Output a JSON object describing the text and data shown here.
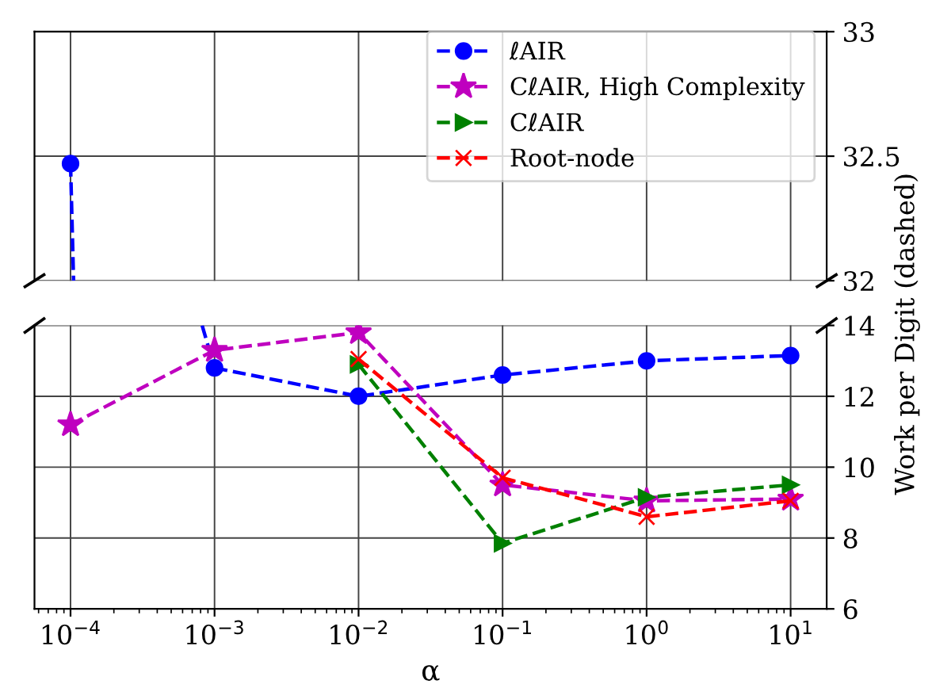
{
  "chart_data": [
    {
      "type": "line",
      "grid": true,
      "line_style": "dashed",
      "tick_labels": "y",
      "log": "x",
      "x": [
        0.0001
      ],
      "xlim": [
        5.62e-05,
        17.8
      ],
      "xticks": [
        0.0001,
        0.001,
        0.01,
        0.1,
        1,
        10
      ],
      "ylim": [
        32,
        33
      ],
      "yticks": [
        32,
        32.5,
        33
      ],
      "series": [
        {
          "color": "#0000ff",
          "x": [
            0.0001,
            0.000105
          ],
          "values": [
            32.47,
            32.0
          ]
        },
        {
          "color": "#0000ff",
          "marker": "circle",
          "values": [
            32.47
          ]
        }
      ]
    },
    {
      "type": "line",
      "grid": true,
      "legend": "top right",
      "line_style": "dashed",
      "log": "x",
      "xlabel": "α",
      "ylabel": "Work per Digit (dashed)",
      "x": [
        0.0001,
        0.001,
        0.01,
        0.1,
        1,
        10
      ],
      "xlim": [
        5.62e-05,
        17.8
      ],
      "xticks": [
        {
          "value": 0.0001,
          "label": "10$^{−4}$"
        },
        {
          "value": 0.001,
          "label": "10$^{−3}$"
        },
        {
          "value": 0.01,
          "label": "10$^{−2}$"
        },
        {
          "value": 0.1,
          "label": "10$^{−1}$"
        },
        {
          "value": 1,
          "label": "10$^{0}$"
        },
        {
          "value": 10,
          "label": "10$^{1}$"
        }
      ],
      "ylim": [
        6,
        14
      ],
      "yticks": [
        6,
        8,
        10,
        12,
        14
      ],
      "series": [
        {
          "color": "#0000ff",
          "x": [
            0.00082,
            0.001
          ],
          "values": [
            14,
            12.8
          ]
        },
        {
          "name": "ℓAIR",
          "color": "#0000ff",
          "marker": "circle",
          "values": [
            null,
            12.8,
            12.0,
            12.6,
            13.0,
            13.15
          ]
        },
        {
          "name": "CℓAIR, High Complexity",
          "color": "#bf00bf",
          "marker": "star",
          "values": [
            11.2,
            13.3,
            13.8,
            9.5,
            9.05,
            9.1
          ]
        },
        {
          "name": "CℓAIR",
          "color": "#008000",
          "marker": "triangle",
          "values": [
            null,
            null,
            12.9,
            7.85,
            9.15,
            9.5
          ]
        },
        {
          "name": "Root-node",
          "color": "#ff0000",
          "marker": "cross",
          "values": [
            null,
            null,
            13.05,
            9.7,
            8.6,
            9.05
          ]
        }
      ]
    }
  ]
}
